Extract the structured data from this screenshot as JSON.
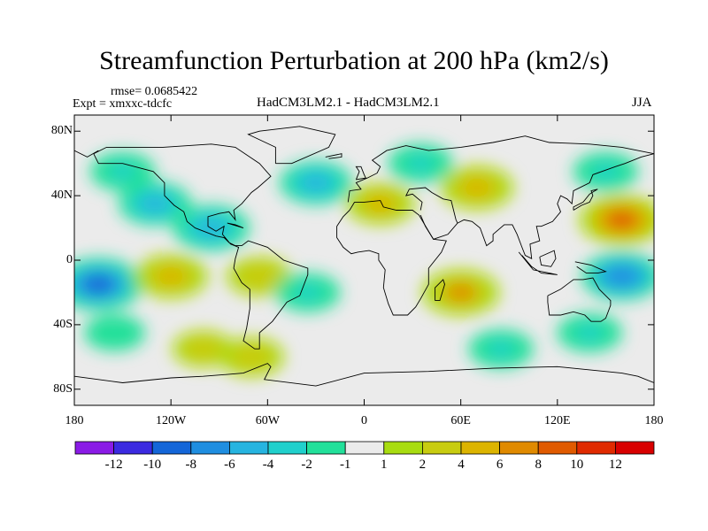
{
  "title": "Streamfunction Perturbation at 200 hPa (km2/s)",
  "rmse": "rmse= 0.0685422",
  "expt": "Expt = xmxxc-tdcfc",
  "subtitle": "HadCM3LM2.1 - HadCM3LM2.1",
  "season": "JJA",
  "lat_labels": [
    "80N",
    "40N",
    "0",
    "40S",
    "80S"
  ],
  "lon_labels": [
    "180",
    "120W",
    "60W",
    "0",
    "60E",
    "120E",
    "180"
  ],
  "colorbar": {
    "labels": [
      "-12",
      "-10",
      "-8",
      "-6",
      "-4",
      "-2",
      "-1",
      "1",
      "2",
      "4",
      "6",
      "8",
      "10",
      "12"
    ],
    "colors": [
      "#8a1be6",
      "#3b2ae0",
      "#1466d8",
      "#1f8ee0",
      "#26b4e0",
      "#20d0cc",
      "#22e09a",
      "#ebebeb",
      "#a8dc10",
      "#c8cc10",
      "#dcb400",
      "#e08a00",
      "#e05a00",
      "#e02a00",
      "#d80000"
    ]
  },
  "map_data": {
    "projection": "cylindrical-equidistant",
    "lon_range": [
      -180,
      180
    ],
    "lat_range": [
      -90,
      90
    ],
    "field": "streamfunction perturbation, 200 hPa, JJA",
    "blobs": [
      {
        "lon": -165,
        "lat": -15,
        "value": -9
      },
      {
        "lon": -150,
        "lat": 55,
        "value": -3
      },
      {
        "lon": -130,
        "lat": 35,
        "value": -5
      },
      {
        "lon": -95,
        "lat": 20,
        "value": -6
      },
      {
        "lon": -30,
        "lat": 48,
        "value": -5
      },
      {
        "lon": 10,
        "lat": 35,
        "value": 4
      },
      {
        "lon": 35,
        "lat": 60,
        "value": -3
      },
      {
        "lon": 70,
        "lat": 45,
        "value": 5
      },
      {
        "lon": 150,
        "lat": 55,
        "value": -3
      },
      {
        "lon": 160,
        "lat": 25,
        "value": 8
      },
      {
        "lon": 160,
        "lat": -10,
        "value": -7
      },
      {
        "lon": -120,
        "lat": -10,
        "value": 5
      },
      {
        "lon": -65,
        "lat": -10,
        "value": 3
      },
      {
        "lon": -35,
        "lat": -20,
        "value": -3
      },
      {
        "lon": 60,
        "lat": -20,
        "value": 6
      },
      {
        "lon": 85,
        "lat": -55,
        "value": -3
      },
      {
        "lon": -70,
        "lat": -60,
        "value": 3
      },
      {
        "lon": -100,
        "lat": -55,
        "value": 2
      },
      {
        "lon": -155,
        "lat": -45,
        "value": -2
      },
      {
        "lon": 140,
        "lat": -45,
        "value": -3
      }
    ]
  }
}
